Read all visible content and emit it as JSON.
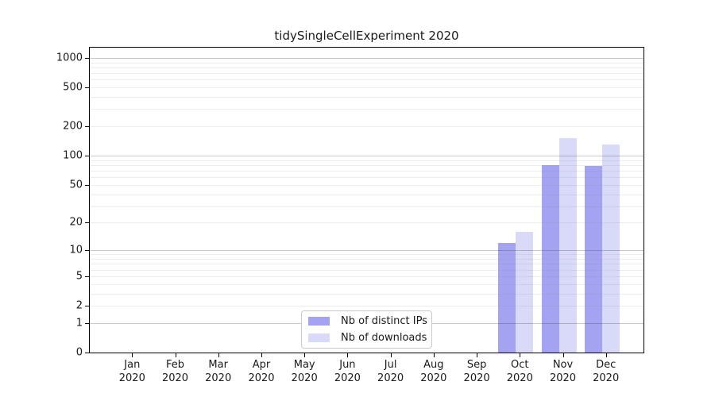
{
  "chart_data": {
    "type": "bar",
    "title": "tidySingleCellExperiment 2020",
    "categories": [
      "Jan 2020",
      "Feb 2020",
      "Mar 2020",
      "Apr 2020",
      "May 2020",
      "Jun 2020",
      "Jul 2020",
      "Aug 2020",
      "Sep 2020",
      "Oct 2020",
      "Nov 2020",
      "Dec 2020"
    ],
    "series": [
      {
        "name": "Nb of distinct IPs",
        "color": "#a3a3f2",
        "values": [
          0,
          0,
          0,
          0,
          0,
          0,
          0,
          0,
          0,
          12,
          80,
          79
        ]
      },
      {
        "name": "Nb of downloads",
        "color": "#d9d9f8",
        "values": [
          0,
          0,
          0,
          0,
          0,
          0,
          0,
          0,
          0,
          16,
          150,
          130
        ]
      }
    ],
    "yscale": "log1p",
    "y_ticks": [
      0,
      1,
      2,
      5,
      10,
      20,
      50,
      100,
      200,
      500,
      1000
    ],
    "ylim": [
      0,
      1270
    ],
    "xlabel": "",
    "ylabel": "",
    "grid": true,
    "legend_position": "lower center"
  }
}
